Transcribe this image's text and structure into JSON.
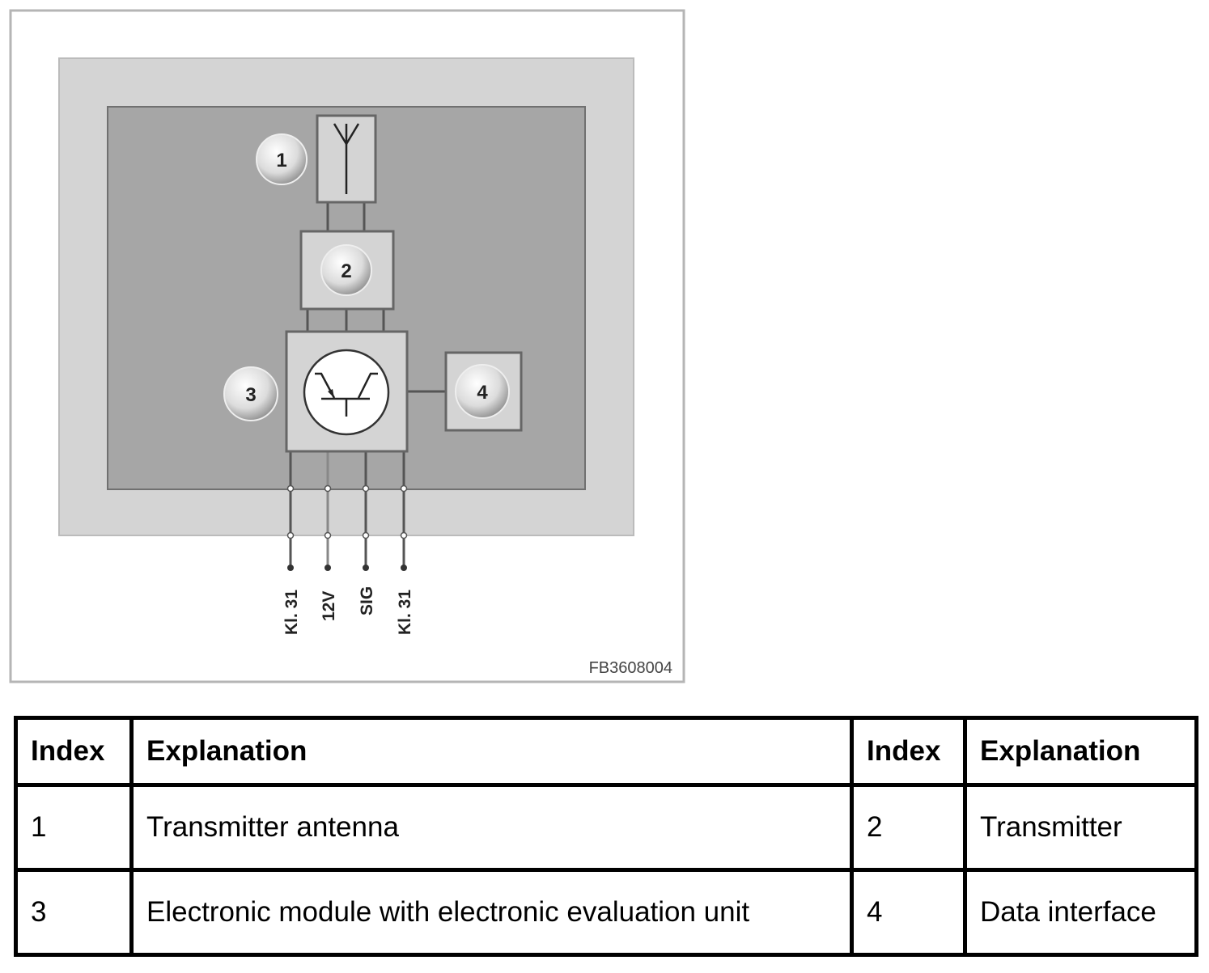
{
  "figure": {
    "callouts": [
      "1",
      "2",
      "3",
      "4"
    ],
    "pins": [
      "Kl. 31",
      "12V",
      "SIG",
      "Kl. 31"
    ],
    "figure_id": "FB3608004",
    "icons": [
      "antenna-icon",
      "transistor-icon"
    ]
  },
  "legend_table": {
    "headers": [
      "Index",
      "Explanation",
      "Index",
      "Explanation"
    ],
    "rows": [
      [
        "1",
        "Transmitter antenna",
        "2",
        "Transmitter"
      ],
      [
        "3",
        "Electronic module with electronic evaluation unit",
        "4",
        "Data interface"
      ]
    ]
  }
}
